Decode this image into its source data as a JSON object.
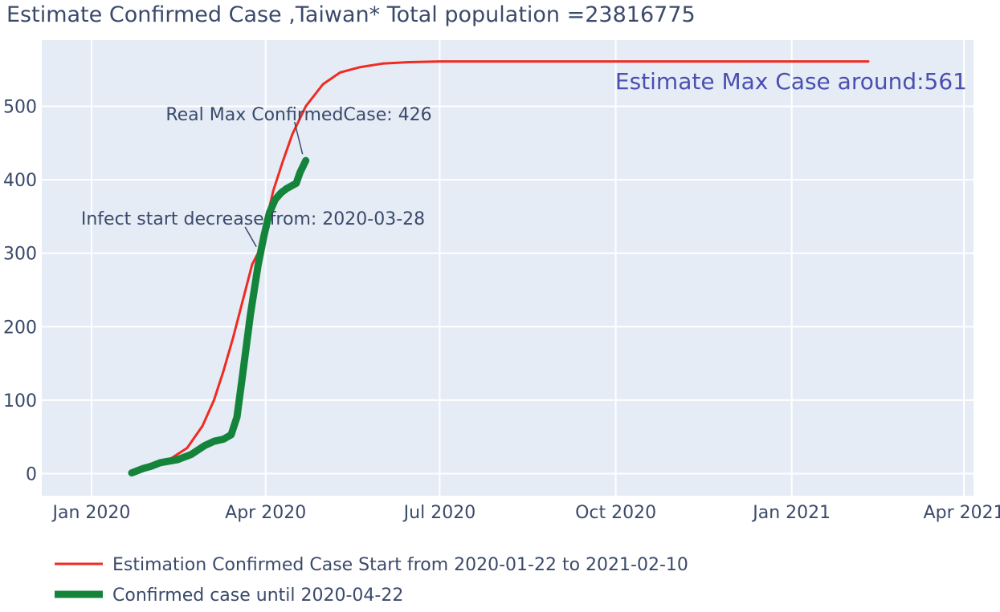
{
  "chart_data": {
    "type": "line",
    "title": "Estimate Confirmed Case ,Taiwan* Total population =23816775",
    "xlabel": "",
    "ylabel": "",
    "x_axis": {
      "type": "date",
      "range": [
        "2019-12-06",
        "2021-04-06"
      ],
      "tick_values": [
        "2020-01-01",
        "2020-04-01",
        "2020-07-01",
        "2020-10-01",
        "2021-01-01",
        "2021-04-01"
      ],
      "tick_labels": [
        "Jan 2020",
        "Apr 2020",
        "Jul 2020",
        "Oct 2020",
        "Jan 2021",
        "Apr 2021"
      ]
    },
    "y_axis": {
      "range": [
        -30,
        590
      ],
      "tick_values": [
        0,
        100,
        200,
        300,
        400,
        500
      ],
      "tick_labels": [
        "0",
        "100",
        "200",
        "300",
        "400",
        "500"
      ]
    },
    "grid": true,
    "plot_background": "#e5ecf6",
    "legend_position": "bottom-left",
    "series": [
      {
        "name": "Estimation Confirmed Case Start from 2020-01-22 to 2021-02-10",
        "color": "#ef2b22",
        "line_width": "thin",
        "points": [
          [
            "2020-01-22",
            0
          ],
          [
            "2020-02-01",
            8
          ],
          [
            "2020-02-10",
            18
          ],
          [
            "2020-02-20",
            35
          ],
          [
            "2020-02-28",
            65
          ],
          [
            "2020-03-05",
            100
          ],
          [
            "2020-03-10",
            140
          ],
          [
            "2020-03-15",
            185
          ],
          [
            "2020-03-20",
            235
          ],
          [
            "2020-03-25",
            285
          ],
          [
            "2020-03-28",
            300
          ],
          [
            "2020-04-01",
            340
          ],
          [
            "2020-04-05",
            385
          ],
          [
            "2020-04-10",
            425
          ],
          [
            "2020-04-15",
            462
          ],
          [
            "2020-04-22",
            500
          ],
          [
            "2020-05-01",
            530
          ],
          [
            "2020-05-10",
            546
          ],
          [
            "2020-05-20",
            553
          ],
          [
            "2020-06-01",
            558
          ],
          [
            "2020-06-15",
            560
          ],
          [
            "2020-07-01",
            561
          ],
          [
            "2020-09-01",
            561
          ],
          [
            "2020-12-01",
            561
          ],
          [
            "2021-02-10",
            561
          ]
        ]
      },
      {
        "name": "Confirmed case until 2020-04-22",
        "color": "#14843a",
        "line_width": "thick",
        "points": [
          [
            "2020-01-22",
            1
          ],
          [
            "2020-01-28",
            7
          ],
          [
            "2020-02-01",
            10
          ],
          [
            "2020-02-06",
            15
          ],
          [
            "2020-02-15",
            19
          ],
          [
            "2020-02-22",
            26
          ],
          [
            "2020-02-29",
            38
          ],
          [
            "2020-03-05",
            44
          ],
          [
            "2020-03-10",
            47
          ],
          [
            "2020-03-14",
            53
          ],
          [
            "2020-03-17",
            77
          ],
          [
            "2020-03-20",
            135
          ],
          [
            "2020-03-24",
            215
          ],
          [
            "2020-03-28",
            283
          ],
          [
            "2020-03-31",
            322
          ],
          [
            "2020-04-03",
            355
          ],
          [
            "2020-04-06",
            373
          ],
          [
            "2020-04-09",
            382
          ],
          [
            "2020-04-12",
            388
          ],
          [
            "2020-04-17",
            395
          ],
          [
            "2020-04-19",
            410
          ],
          [
            "2020-04-22",
            426
          ]
        ]
      }
    ],
    "annotations": [
      {
        "text": "Real Max ConfirmedCase: 426",
        "x": "2020-04-22",
        "y": 426,
        "arrow": true
      },
      {
        "text": "Infect start decrease from: 2020-03-28",
        "x": "2020-03-28",
        "y": 300,
        "arrow": true
      },
      {
        "text": "Estimate Max Case around:561",
        "position": "top-right",
        "color": "#4a4fb0"
      }
    ]
  }
}
